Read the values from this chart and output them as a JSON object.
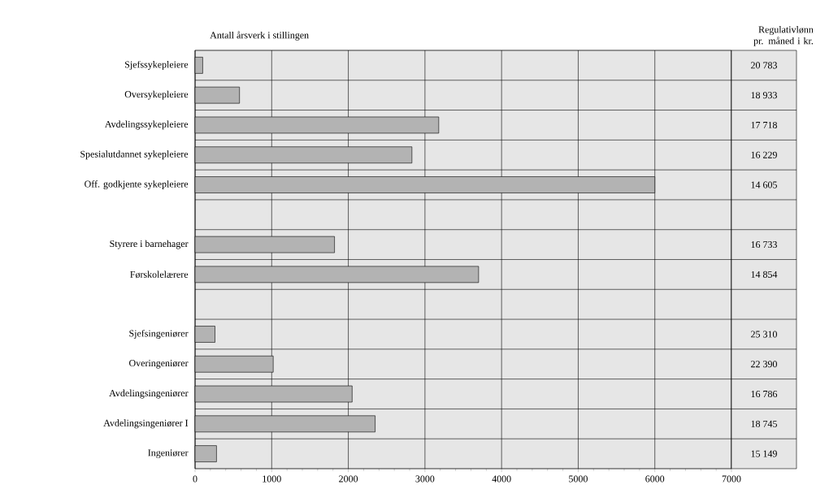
{
  "chart_data": {
    "type": "bar",
    "orientation": "horizontal",
    "title": "Antall årsverk i stillingen",
    "categories": [
      "Sjefssykepleiere",
      "Oversykepleiere",
      "Avdelingssykepleiere",
      "Spesialutdannet sykepleiere",
      "Off. godkjente sykepleiere",
      null,
      "Styrere i barnehager",
      "Førskolelærere",
      null,
      "Sjefsingeniører",
      "Overingeniører",
      "Avdelingsingeniører",
      "Avdelingsingeniører I",
      "Ingeniører"
    ],
    "values": [
      100,
      580,
      3180,
      2830,
      6000,
      null,
      1820,
      3700,
      null,
      260,
      1020,
      2050,
      2350,
      280
    ],
    "color": "#b3b3b3",
    "xlim": [
      0,
      7000
    ],
    "xticks": [
      0,
      1000,
      2000,
      3000,
      4000,
      5000,
      6000,
      7000
    ],
    "grid": true,
    "annotations": [
      "Regulativlønn pr. måned i kr.",
      "20 783",
      "18 933",
      "17 718",
      "16 229",
      "14 605",
      "16 733",
      "14 854",
      "25 310",
      "22 390",
      "16 786",
      "18 745",
      "15 149"
    ]
  }
}
